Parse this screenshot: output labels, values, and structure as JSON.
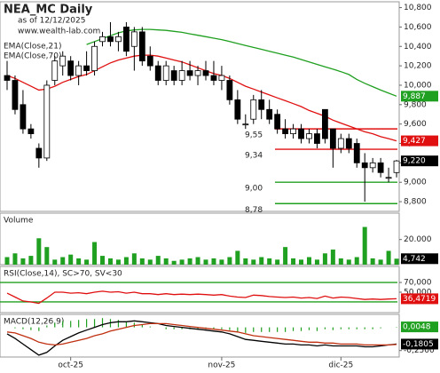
{
  "chart_data": [
    {
      "type": "candlestick",
      "title": "NEA_MC Daily",
      "subtitle": "as of 12/12/2025",
      "source": "www.wealth-lab.com",
      "ylim": [
        8700,
        10860
      ],
      "yticks": [
        {
          "value": 10800,
          "label": "10,800"
        },
        {
          "value": 10600,
          "label": "10,600"
        },
        {
          "value": 10400,
          "label": "10,400"
        },
        {
          "value": 10200,
          "label": "10,200"
        },
        {
          "value": 10000,
          "label": "10,000"
        },
        {
          "value": 9800,
          "label": "9,800"
        },
        {
          "value": 9600,
          "label": "9,600"
        },
        {
          "value": 9400,
          "label": "9,400"
        },
        {
          "value": 9200,
          "label": "9,200"
        },
        {
          "value": 9000,
          "label": "9,000"
        },
        {
          "value": 8800,
          "label": "8,800"
        }
      ],
      "up_color": "#ffffff",
      "down_color": "#000000",
      "label_color": "#000000",
      "open": [
        10100,
        10050,
        9800,
        9550,
        9350,
        9250,
        10050,
        10200,
        10250,
        10100,
        10200,
        10150,
        10450,
        10500,
        10450,
        10600,
        10400,
        10550,
        10300,
        10200,
        10050,
        10150,
        10050,
        10150,
        10100,
        10150,
        10100,
        10050,
        10050,
        9850,
        9600,
        9650,
        9850,
        9750,
        9700,
        9550,
        9500,
        9550,
        9450,
        9500,
        9750,
        9550,
        9350,
        9450,
        9400,
        9200,
        9150,
        9200,
        9050,
        9100
      ],
      "high": [
        10250,
        10100,
        9950,
        9600,
        9400,
        10050,
        10300,
        10350,
        10300,
        10250,
        10350,
        10450,
        10550,
        10650,
        10550,
        10650,
        10600,
        10600,
        10400,
        10250,
        10250,
        10200,
        10250,
        10250,
        10200,
        10250,
        10250,
        10200,
        10100,
        9950,
        9700,
        9900,
        9950,
        9850,
        9750,
        9650,
        9600,
        9600,
        9550,
        9550,
        9750,
        9550,
        9500,
        9500,
        9450,
        9300,
        9250,
        9250,
        9150,
        9230
      ],
      "low": [
        9950,
        9700,
        9500,
        9450,
        9150,
        9220,
        10000,
        10100,
        10050,
        10000,
        10100,
        10100,
        10400,
        10400,
        10350,
        10300,
        10150,
        10200,
        10150,
        10000,
        10000,
        10000,
        10000,
        10050,
        10000,
        10050,
        10000,
        9950,
        9800,
        9600,
        9550,
        9600,
        9650,
        9600,
        9500,
        9450,
        9450,
        9400,
        9400,
        9350,
        9400,
        9150,
        9300,
        9300,
        9150,
        8800,
        9100,
        9050,
        9000,
        9050
      ],
      "close": [
        10050,
        9750,
        9550,
        9500,
        9250,
        10000,
        10250,
        10300,
        10100,
        10200,
        10150,
        10400,
        10500,
        10450,
        10500,
        10350,
        10550,
        10250,
        10200,
        10050,
        10200,
        10050,
        10150,
        10100,
        10150,
        10100,
        10050,
        10100,
        9850,
        9650,
        9600,
        9850,
        9750,
        9650,
        9550,
        9500,
        9550,
        9450,
        9500,
        9400,
        9450,
        9350,
        9450,
        9350,
        9200,
        9150,
        9200,
        9100,
        9050,
        9220
      ],
      "close_value_labels": [
        null,
        null,
        null,
        null,
        null,
        null,
        null,
        null,
        null,
        null,
        null,
        null,
        null,
        null,
        null,
        null,
        null,
        null,
        null,
        null,
        null,
        null,
        null,
        null,
        null,
        null,
        null,
        null,
        null,
        null,
        null,
        null,
        null,
        null,
        null,
        null,
        null,
        null,
        null,
        null,
        null,
        null,
        null,
        null,
        null,
        null,
        null,
        null,
        null,
        "9,220"
      ],
      "series": [
        {
          "name": "EMA(Close,21)",
          "color": "#e01010",
          "values": [
            10100,
            10070,
            10030,
            9990,
            9950,
            9960,
            9990,
            10030,
            10060,
            10090,
            10110,
            10150,
            10190,
            10230,
            10260,
            10280,
            10300,
            10310,
            10310,
            10300,
            10280,
            10260,
            10240,
            10210,
            10180,
            10150,
            10120,
            10100,
            10070,
            10030,
            9990,
            9960,
            9930,
            9900,
            9870,
            9840,
            9810,
            9780,
            9740,
            9710,
            9680,
            9640,
            9610,
            9580,
            9550,
            9520,
            9500,
            9470,
            9450,
            9427
          ],
          "value_labels": [
            null,
            null,
            null,
            null,
            null,
            null,
            null,
            null,
            null,
            null,
            null,
            null,
            null,
            null,
            null,
            null,
            null,
            null,
            null,
            null,
            null,
            null,
            null,
            null,
            null,
            null,
            null,
            null,
            null,
            null,
            null,
            null,
            null,
            null,
            null,
            null,
            null,
            null,
            null,
            null,
            null,
            null,
            null,
            null,
            null,
            null,
            null,
            null,
            null,
            "9,427"
          ]
        },
        {
          "name": "EMA(Close,70)",
          "color": "#20a020",
          "values": [
            null,
            null,
            null,
            null,
            null,
            null,
            null,
            null,
            null,
            null,
            10420,
            10450,
            10480,
            10510,
            10540,
            10560,
            10570,
            10575,
            10575,
            10570,
            10565,
            10555,
            10545,
            10530,
            10515,
            10500,
            10485,
            10470,
            10450,
            10430,
            10410,
            10390,
            10370,
            10350,
            10330,
            10310,
            10290,
            10265,
            10240,
            10215,
            10190,
            10165,
            10140,
            10110,
            10060,
            10020,
            9985,
            9950,
            9918,
            9887
          ],
          "value_labels": [
            null,
            null,
            null,
            null,
            null,
            null,
            null,
            null,
            null,
            null,
            null,
            null,
            null,
            null,
            null,
            null,
            null,
            null,
            null,
            null,
            null,
            null,
            null,
            null,
            null,
            null,
            null,
            null,
            null,
            null,
            null,
            null,
            null,
            null,
            null,
            null,
            null,
            null,
            null,
            null,
            null,
            null,
            null,
            null,
            null,
            null,
            null,
            null,
            null,
            "9,887"
          ]
        }
      ],
      "levels": [
        {
          "value": 9550,
          "label": "9,55",
          "color": "#e01010"
        },
        {
          "value": 9340,
          "label": "9,34",
          "color": "#e01010"
        },
        {
          "value": 9000,
          "label": "9,00",
          "color": "#20a020"
        },
        {
          "value": 8780,
          "label": "8,78",
          "color": "#20a020"
        }
      ]
    },
    {
      "type": "bar",
      "title": "Volume",
      "color": "#20a020",
      "label_color": "#000000",
      "ylim": [
        0,
        41000
      ],
      "yticks": [
        {
          "value": 20000,
          "label": "20.000"
        }
      ],
      "values": [
        6000,
        9000,
        5000,
        7000,
        21000,
        14000,
        4000,
        6000,
        8000,
        5000,
        4000,
        18000,
        7000,
        5000,
        4000,
        6000,
        9000,
        5000,
        4000,
        7000,
        5000,
        3000,
        4000,
        5000,
        6000,
        4000,
        5000,
        4000,
        6000,
        11000,
        5000,
        4000,
        6000,
        5000,
        4000,
        14000,
        5000,
        4000,
        6000,
        4000,
        9000,
        12000,
        5000,
        4000,
        6000,
        30000,
        5000,
        4000,
        11000,
        4742
      ],
      "value_labels": [
        null,
        null,
        null,
        null,
        null,
        null,
        null,
        null,
        null,
        null,
        null,
        null,
        null,
        null,
        null,
        null,
        null,
        null,
        null,
        null,
        null,
        null,
        null,
        null,
        null,
        null,
        null,
        null,
        null,
        null,
        null,
        null,
        null,
        null,
        null,
        null,
        null,
        null,
        null,
        null,
        null,
        null,
        null,
        null,
        null,
        null,
        null,
        null,
        null,
        "4,742"
      ]
    },
    {
      "type": "line",
      "title": "RSI(Close,14), SC>70, SV<30",
      "ylim": [
        8,
        103
      ],
      "yticks": [
        {
          "value": 70,
          "label": "70,000"
        },
        {
          "value": 50,
          "label": "50,000"
        }
      ],
      "levels": [
        {
          "value": 70,
          "color": "#20a020"
        },
        {
          "value": 30,
          "color": "#20a020"
        }
      ],
      "series": [
        {
          "color": "#e01010",
          "values": [
            48,
            40,
            32,
            30,
            27,
            38,
            50,
            50,
            48,
            49,
            47,
            50,
            52,
            50,
            51,
            48,
            50,
            47,
            47,
            45,
            47,
            45,
            46,
            45,
            46,
            45,
            44,
            45,
            42,
            40,
            39,
            44,
            43,
            41,
            40,
            39,
            40,
            38,
            39,
            37,
            42,
            38,
            40,
            39,
            37,
            35,
            36,
            35,
            36,
            36.4719
          ],
          "value_labels": [
            null,
            null,
            null,
            null,
            null,
            null,
            null,
            null,
            null,
            null,
            null,
            null,
            null,
            null,
            null,
            null,
            null,
            null,
            null,
            null,
            null,
            null,
            null,
            null,
            null,
            null,
            null,
            null,
            null,
            null,
            null,
            null,
            null,
            null,
            null,
            null,
            null,
            null,
            null,
            null,
            null,
            null,
            null,
            null,
            null,
            null,
            null,
            null,
            null,
            "36,4719"
          ]
        }
      ]
    },
    {
      "type": "line",
      "title": "MACD(12,26,9)",
      "ylim": [
        -0.32,
        0.14
      ],
      "yticks": [
        {
          "value": -0.25,
          "label": "-0,2500"
        }
      ],
      "categories": [
        null,
        null,
        null,
        null,
        null,
        null,
        null,
        null,
        "oct-25",
        null,
        null,
        null,
        null,
        null,
        null,
        null,
        null,
        null,
        null,
        null,
        null,
        null,
        null,
        null,
        null,
        null,
        null,
        "nov-25",
        null,
        null,
        null,
        null,
        null,
        null,
        null,
        null,
        null,
        null,
        null,
        null,
        null,
        null,
        "dic-25",
        null,
        null,
        null,
        null,
        null,
        null,
        null
      ],
      "series": [
        {
          "type": "bar",
          "color": "#20a020",
          "values": [
            0,
            -0.01,
            -0.02,
            -0.03,
            -0.04,
            0.02,
            0.05,
            0.07,
            0.07,
            0.08,
            0.09,
            0.09,
            0.1,
            0.09,
            0.08,
            0.06,
            0.05,
            0.03,
            0.01,
            0,
            -0.02,
            -0.02,
            -0.02,
            -0.02,
            -0.02,
            -0.02,
            -0.02,
            -0.02,
            -0.03,
            -0.05,
            -0.06,
            -0.05,
            -0.05,
            -0.05,
            -0.05,
            -0.05,
            -0.04,
            -0.04,
            -0.03,
            -0.04,
            -0.02,
            -0.03,
            -0.02,
            -0.02,
            -0.02,
            -0.02,
            -0.02,
            -0.01,
            0,
            0.0048
          ],
          "value_labels": [
            null,
            null,
            null,
            null,
            null,
            null,
            null,
            null,
            null,
            null,
            null,
            null,
            null,
            null,
            null,
            null,
            null,
            null,
            null,
            null,
            null,
            null,
            null,
            null,
            null,
            null,
            null,
            null,
            null,
            null,
            null,
            null,
            null,
            null,
            null,
            null,
            null,
            null,
            null,
            null,
            null,
            null,
            null,
            null,
            null,
            null,
            null,
            null,
            null,
            "0,0048"
          ]
        },
        {
          "color": "#000000",
          "values": [
            -0.07,
            -0.12,
            -0.18,
            -0.24,
            -0.3,
            -0.27,
            -0.2,
            -0.14,
            -0.1,
            -0.06,
            -0.03,
            0,
            0.03,
            0.05,
            0.06,
            0.06,
            0.07,
            0.06,
            0.05,
            0.04,
            0.02,
            0.01,
            0,
            -0.01,
            -0.02,
            -0.03,
            -0.04,
            -0.05,
            -0.07,
            -0.1,
            -0.13,
            -0.14,
            -0.15,
            -0.16,
            -0.17,
            -0.18,
            -0.18,
            -0.19,
            -0.19,
            -0.2,
            -0.19,
            -0.2,
            -0.2,
            -0.2,
            -0.2,
            -0.21,
            -0.21,
            -0.2,
            -0.19,
            -0.1805
          ],
          "value_labels": [
            null,
            null,
            null,
            null,
            null,
            null,
            null,
            null,
            null,
            null,
            null,
            null,
            null,
            null,
            null,
            null,
            null,
            null,
            null,
            null,
            null,
            null,
            null,
            null,
            null,
            null,
            null,
            null,
            null,
            null,
            null,
            null,
            null,
            null,
            null,
            null,
            null,
            null,
            null,
            null,
            null,
            null,
            null,
            null,
            null,
            null,
            null,
            null,
            null,
            "-0,1805"
          ]
        },
        {
          "color": "#c03010",
          "values": [
            -0.05,
            -0.06,
            -0.09,
            -0.12,
            -0.16,
            -0.18,
            -0.19,
            -0.18,
            -0.16,
            -0.14,
            -0.12,
            -0.09,
            -0.07,
            -0.04,
            -0.02,
            0,
            0.02,
            0.03,
            0.04,
            0.04,
            0.04,
            0.03,
            0.02,
            0.01,
            0,
            -0.01,
            -0.02,
            -0.03,
            -0.04,
            -0.05,
            -0.07,
            -0.09,
            -0.1,
            -0.11,
            -0.12,
            -0.13,
            -0.14,
            -0.15,
            -0.16,
            -0.16,
            -0.17,
            -0.17,
            -0.18,
            -0.18,
            -0.18,
            -0.19,
            -0.19,
            -0.19,
            -0.19,
            -0.185
          ]
        }
      ]
    }
  ]
}
